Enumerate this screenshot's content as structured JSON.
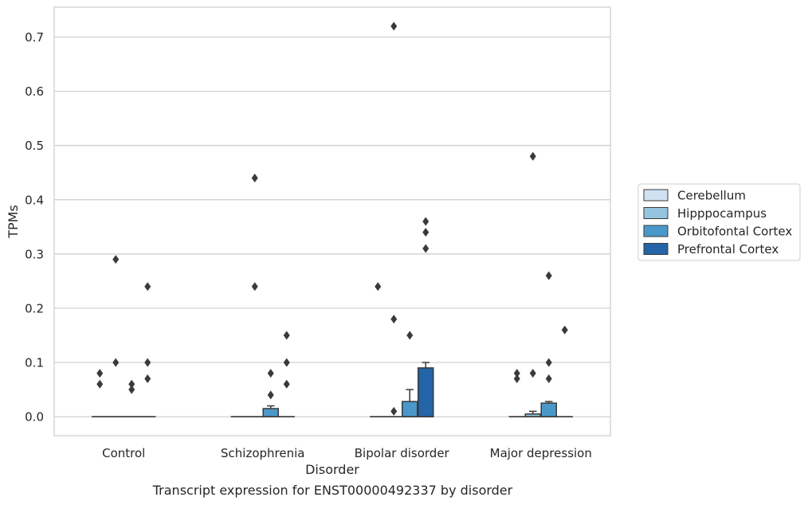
{
  "caption": "Transcript expression for ENST00000492337 by disorder",
  "chart_data": {
    "type": "box",
    "title": "",
    "xlabel": "Disorder",
    "ylabel": "TPMs",
    "ylim": [
      -0.035,
      0.755
    ],
    "yticks": [
      0.0,
      0.1,
      0.2,
      0.3,
      0.4,
      0.5,
      0.6,
      0.7
    ],
    "ytick_labels": [
      "0.0",
      "0.1",
      "0.2",
      "0.3",
      "0.4",
      "0.5",
      "0.6",
      "0.7"
    ],
    "grid": "horizontal",
    "legend_position": "right",
    "categories": [
      "Control",
      "Schizophrenia",
      "Bipolar disorder",
      "Major depression"
    ],
    "series": [
      {
        "name": "Cerebellum",
        "color": "#d0e1f2",
        "boxes": [
          {
            "q1": 0,
            "median": 0,
            "q3": 0,
            "whislo": 0,
            "whishi": 0,
            "fliers": [
              0.06,
              0.08
            ]
          },
          {
            "q1": 0,
            "median": 0,
            "q3": 0,
            "whislo": 0,
            "whishi": 0,
            "fliers": []
          },
          {
            "q1": 0,
            "median": 0,
            "q3": 0,
            "whislo": 0,
            "whishi": 0,
            "fliers": [
              0.24
            ]
          },
          {
            "q1": 0,
            "median": 0,
            "q3": 0,
            "whislo": 0,
            "whishi": 0,
            "fliers": [
              0.07,
              0.08
            ]
          }
        ]
      },
      {
        "name": "Hipppocampus",
        "color": "#94c4df",
        "boxes": [
          {
            "q1": 0,
            "median": 0,
            "q3": 0,
            "whislo": 0,
            "whishi": 0,
            "fliers": [
              0.1,
              0.29
            ]
          },
          {
            "q1": 0,
            "median": 0,
            "q3": 0,
            "whislo": 0,
            "whishi": 0,
            "fliers": [
              0.24,
              0.44
            ]
          },
          {
            "q1": 0,
            "median": 0,
            "q3": 0,
            "whislo": 0,
            "whishi": 0,
            "fliers": [
              0.01,
              0.18,
              0.72
            ]
          },
          {
            "q1": 0,
            "median": 0,
            "q3": 0.005,
            "whislo": 0,
            "whishi": 0.01,
            "fliers": [
              0.08,
              0.48
            ]
          }
        ]
      },
      {
        "name": "Orbitofontal Cortex",
        "color": "#4a98c9",
        "boxes": [
          {
            "q1": 0,
            "median": 0,
            "q3": 0,
            "whislo": 0,
            "whishi": 0,
            "fliers": [
              0.05,
              0.06
            ]
          },
          {
            "q1": 0,
            "median": 0,
            "q3": 0.015,
            "whislo": 0,
            "whishi": 0.02,
            "fliers": [
              0.04,
              0.08
            ]
          },
          {
            "q1": 0,
            "median": 0,
            "q3": 0.028,
            "whislo": 0,
            "whishi": 0.05,
            "fliers": [
              0.15
            ]
          },
          {
            "q1": 0,
            "median": 0,
            "q3": 0.025,
            "whislo": 0,
            "whishi": 0.028,
            "fliers": [
              0.07,
              0.1,
              0.26
            ]
          }
        ]
      },
      {
        "name": "Prefrontal Cortex",
        "color": "#2464a8",
        "boxes": [
          {
            "q1": 0,
            "median": 0,
            "q3": 0,
            "whislo": 0,
            "whishi": 0,
            "fliers": [
              0.07,
              0.1,
              0.24
            ]
          },
          {
            "q1": 0,
            "median": 0,
            "q3": 0,
            "whislo": 0,
            "whishi": 0,
            "fliers": [
              0.06,
              0.1,
              0.15
            ]
          },
          {
            "q1": 0,
            "median": 0,
            "q3": 0.09,
            "whislo": 0,
            "whishi": 0.1,
            "fliers": [
              0.31,
              0.34,
              0.36
            ]
          },
          {
            "q1": 0,
            "median": 0,
            "q3": 0,
            "whislo": 0,
            "whishi": 0,
            "fliers": [
              0.16
            ]
          }
        ]
      }
    ]
  }
}
